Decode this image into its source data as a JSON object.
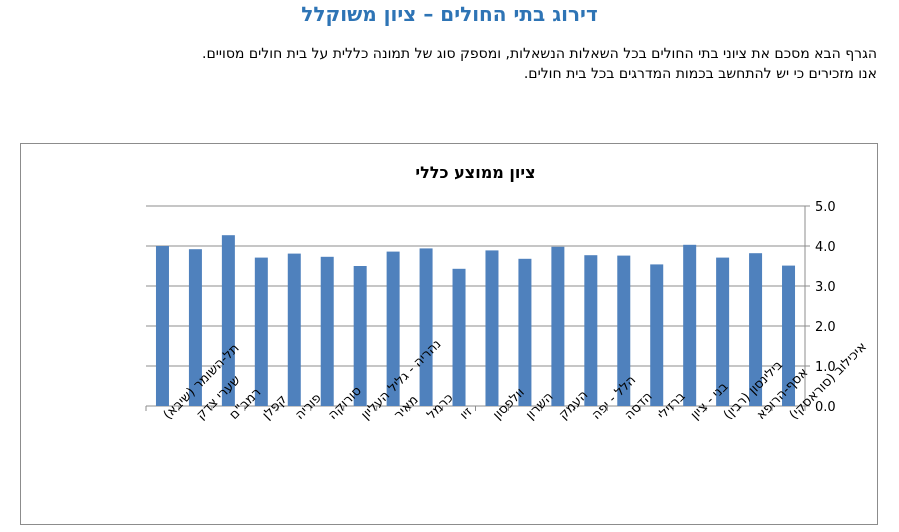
{
  "page": {
    "title": "דירוג בתי החולים – ציון משוקלל",
    "intro_line1": "הגרף הבא מסכם את ציוני בתי החולים בכל השאלות הנשאלות, ומספק סוג של תמונה כללית על בית חולים מסויים.",
    "intro_line2": "אנו מזכירים כי יש להתחשב בכמות המדרגים בכל בית חולים."
  },
  "chart_data": {
    "type": "bar",
    "title": "ציון ממוצע כללי",
    "xlabel": "",
    "ylabel": "",
    "ylim": [
      0,
      5
    ],
    "yticks": [
      "0.0",
      "1.0",
      "2.0",
      "3.0",
      "4.0",
      "5.0"
    ],
    "y_axis_position": "right",
    "grid": true,
    "legend": "none",
    "bar_color": "#4f81bd",
    "categories": [
      "תל-השומר (שיבא)",
      "שערי צדק",
      "רמב\"ם",
      "קפלן",
      "פוריה",
      "סורוקה",
      "נהריה - גליל העליון",
      "מאיר",
      "כרמל",
      "זיו",
      "וולפסון",
      "השרון",
      "העמק",
      "הלל - יפה",
      "הדסה",
      "ברזילי",
      "בני - ציון",
      "בילינסון (רבין)",
      "אסף-הרופא",
      "איכילוב (סוראסקי)"
    ],
    "values": [
      4.0,
      3.92,
      4.27,
      3.71,
      3.81,
      3.73,
      3.5,
      3.86,
      3.94,
      3.43,
      3.89,
      3.68,
      3.98,
      3.77,
      3.76,
      3.54,
      4.03,
      3.71,
      3.82,
      3.51
    ]
  }
}
